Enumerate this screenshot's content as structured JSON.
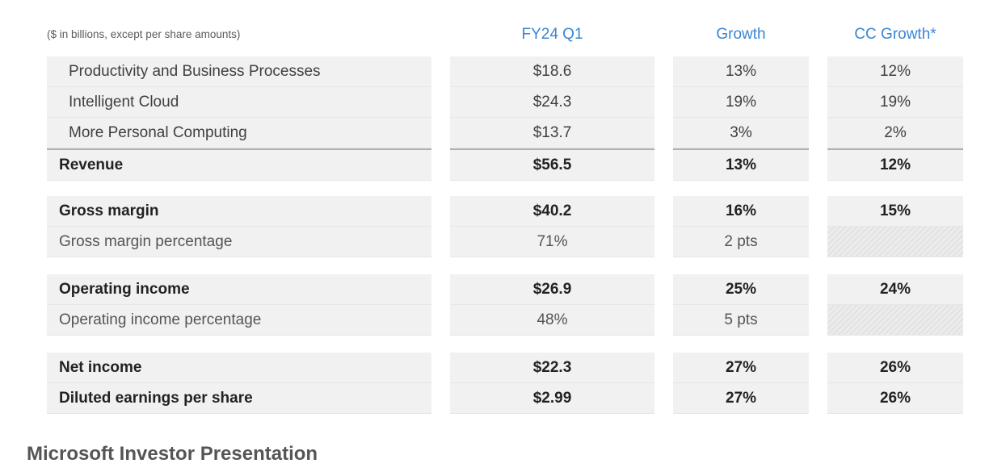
{
  "chart_data": {
    "type": "table",
    "note": "($ in billions, except per share amounts)",
    "columns": [
      "FY24 Q1",
      "Growth",
      "CC Growth*"
    ],
    "rows": [
      {
        "label": "Productivity and Business Processes",
        "values": [
          "$18.6",
          "13%",
          "12%"
        ],
        "style": "indent"
      },
      {
        "label": "Intelligent Cloud",
        "values": [
          "$24.3",
          "19%",
          "19%"
        ],
        "style": "indent"
      },
      {
        "label": "More Personal Computing",
        "values": [
          "$13.7",
          "3%",
          "2%"
        ],
        "style": "indent"
      },
      {
        "label": "Revenue",
        "values": [
          "$56.5",
          "13%",
          "12%"
        ],
        "style": "bold-rule"
      },
      {
        "label": "Gross margin",
        "values": [
          "$40.2",
          "16%",
          "15%"
        ],
        "style": "bold"
      },
      {
        "label": "Gross margin percentage",
        "values": [
          "71%",
          "2 pts",
          ""
        ],
        "style": "sub-hatch"
      },
      {
        "label": "Operating income",
        "values": [
          "$26.9",
          "25%",
          "24%"
        ],
        "style": "bold"
      },
      {
        "label": "Operating income percentage",
        "values": [
          "48%",
          "5 pts",
          ""
        ],
        "style": "sub-hatch"
      },
      {
        "label": "Net income",
        "values": [
          "$22.3",
          "27%",
          "26%"
        ],
        "style": "bold"
      },
      {
        "label": "Diluted earnings per share",
        "values": [
          "$2.99",
          "27%",
          "26%"
        ],
        "style": "bold"
      }
    ]
  },
  "caption": "Microsoft Investor Presentation",
  "colors": {
    "header": "#3a86d4",
    "cell_bg": "#f1f1f1",
    "caption": "#555555"
  }
}
